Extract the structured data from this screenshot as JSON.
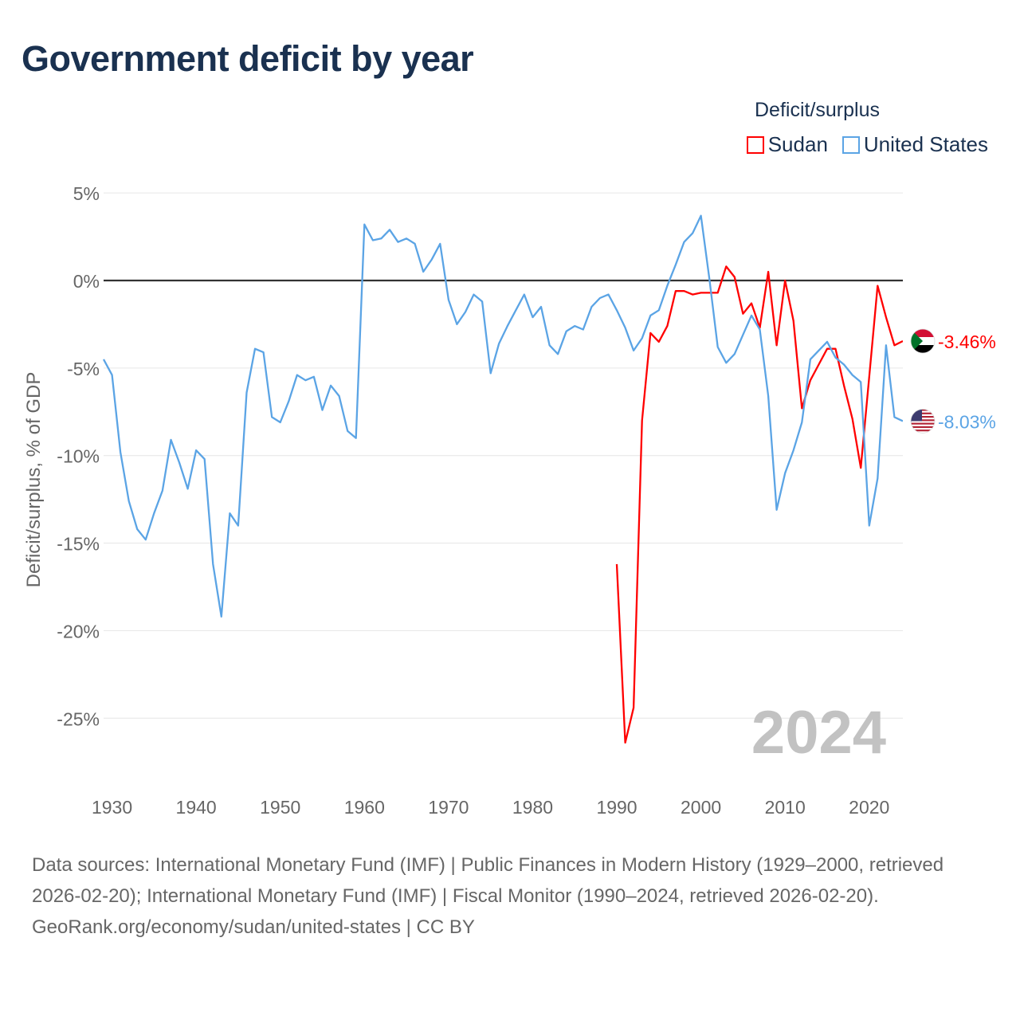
{
  "title": "Government deficit by year",
  "footer": {
    "sources": "Data sources: International Monetary Fund (IMF) | Public Finances in Modern History (1929–2000, retrieved 2026-02-20); International Monetary Fund (IMF) | Fiscal Monitor (1990–2024, retrieved 2026-02-20).",
    "credit": "GeoRank.org/economy/sudan/united-states | CC BY"
  },
  "chart_data": {
    "type": "line",
    "title": "Government deficit by year",
    "ylabel": "Deficit/surplus, % of GDP",
    "xlabel": "",
    "year_watermark": "2024",
    "legend_title": "Deficit/surplus",
    "legend_position": "top-right",
    "xlim": [
      1929,
      2024
    ],
    "ylim": [
      -28,
      5
    ],
    "grid": true,
    "x_ticks": [
      1930,
      1940,
      1950,
      1960,
      1970,
      1980,
      1990,
      2000,
      2010,
      2020
    ],
    "x_tick_labels": [
      "1930",
      "1940",
      "1950",
      "1960",
      "1970",
      "1980",
      "1990",
      "2000",
      "2010",
      "2020"
    ],
    "y_ticks": [
      5,
      0,
      -5,
      -10,
      -15,
      -20,
      -25
    ],
    "y_tick_labels": [
      "5%",
      "0%",
      "-5%",
      "-10%",
      "-15%",
      "-20%",
      "-25%"
    ],
    "series": [
      {
        "name": "Sudan",
        "color": "#ff0000",
        "start_year": 1990,
        "end_label": "-3.46%",
        "values": [
          -16.2,
          -26.4,
          -24.4,
          -8.0,
          -3.0,
          -3.5,
          -2.6,
          -0.6,
          -0.6,
          -0.8,
          -0.7,
          -0.7,
          -0.7,
          0.8,
          0.2,
          -1.9,
          -1.3,
          -2.7,
          0.5,
          -3.7,
          0.0,
          -2.3,
          -7.3,
          -5.7,
          -4.8,
          -3.9,
          -3.9,
          -6.0,
          -7.9,
          -10.7,
          -5.5,
          -0.3,
          -2.1,
          -3.7,
          -3.46
        ]
      },
      {
        "name": "United States",
        "color": "#5ba4e5",
        "start_year": 1929,
        "end_label": "-8.03%",
        "values": [
          -4.5,
          -5.4,
          -9.8,
          -12.6,
          -14.2,
          -14.8,
          -13.3,
          -12.0,
          -9.1,
          -10.4,
          -11.9,
          -9.7,
          -10.2,
          -16.2,
          -19.2,
          -13.3,
          -14.0,
          -6.4,
          -3.9,
          -4.1,
          -7.8,
          -8.1,
          -6.9,
          -5.4,
          -5.7,
          -5.5,
          -7.4,
          -6.0,
          -6.6,
          -8.6,
          -9.0,
          3.2,
          2.3,
          2.4,
          2.9,
          2.2,
          2.4,
          2.1,
          0.5,
          1.2,
          2.1,
          -1.1,
          -2.5,
          -1.8,
          -0.8,
          -1.2,
          -5.3,
          -3.6,
          -2.6,
          -1.7,
          -0.8,
          -2.1,
          -1.5,
          -3.7,
          -4.2,
          -2.9,
          -2.6,
          -2.8,
          -1.5,
          -1.0,
          -0.8,
          -1.7,
          -2.7,
          -4.0,
          -3.3,
          -2.0,
          -1.7,
          -0.3,
          0.9,
          2.2,
          2.7,
          3.7,
          0.1,
          -3.8,
          -4.7,
          -4.2,
          -3.1,
          -2.0,
          -2.8,
          -6.6,
          -13.1,
          -11.0,
          -9.7,
          -8.1,
          -4.5,
          -4.0,
          -3.5,
          -4.4,
          -4.8,
          -5.4,
          -5.8,
          -14.0,
          -11.3,
          -3.7,
          -7.8,
          -8.03
        ]
      }
    ]
  }
}
